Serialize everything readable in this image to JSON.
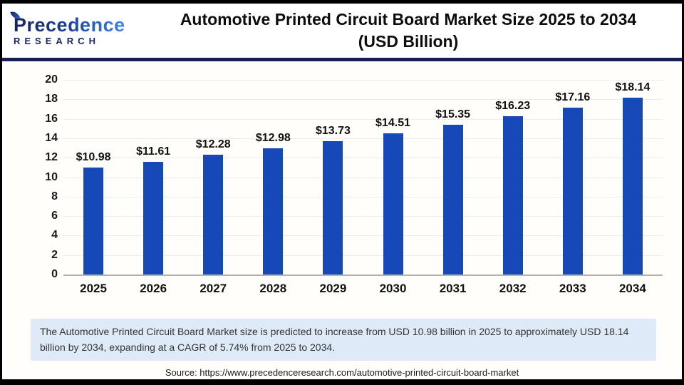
{
  "header": {
    "logo_line1": "Precedence",
    "logo_line2": "RESEARCH",
    "title": "Automotive Printed Circuit Board Market Size 2025 to 2034",
    "subtitle": "(USD Billion)"
  },
  "chart_data": {
    "type": "bar",
    "title": "Automotive Printed Circuit Board Market Size 2025 to 2034 (USD Billion)",
    "categories": [
      "2025",
      "2026",
      "2027",
      "2028",
      "2029",
      "2030",
      "2031",
      "2032",
      "2033",
      "2034"
    ],
    "values": [
      10.98,
      11.61,
      12.28,
      12.98,
      13.73,
      14.51,
      15.35,
      16.23,
      17.16,
      18.14
    ],
    "value_labels": [
      "$10.98",
      "$11.61",
      "$12.28",
      "$12.98",
      "$13.73",
      "$14.51",
      "$15.35",
      "$16.23",
      "$17.16",
      "$18.14"
    ],
    "xlabel": "",
    "ylabel": "",
    "ylim": [
      0,
      20
    ],
    "yticks": [
      0,
      2,
      4,
      6,
      8,
      10,
      12,
      14,
      16,
      18,
      20
    ],
    "grid": "horizontal-light",
    "legend": "none",
    "bar_color": "#1648b8"
  },
  "note": {
    "text": "The Automotive Printed Circuit Board Market size is predicted to increase from USD 10.98 billion in 2025 to approximately USD 18.14 billion by 2034, expanding at a CAGR of 5.74% from 2025 to 2034."
  },
  "source": {
    "text": "Source: https://www.precedenceresearch.com/automotive-printed-circuit-board-market"
  },
  "colors": {
    "bar": "#1648b8",
    "divider": "#16204e",
    "note_background": "#dfeaf8",
    "gridline": "#ececec",
    "axis_baseline": "#b3b3b3",
    "border": "#000000"
  }
}
